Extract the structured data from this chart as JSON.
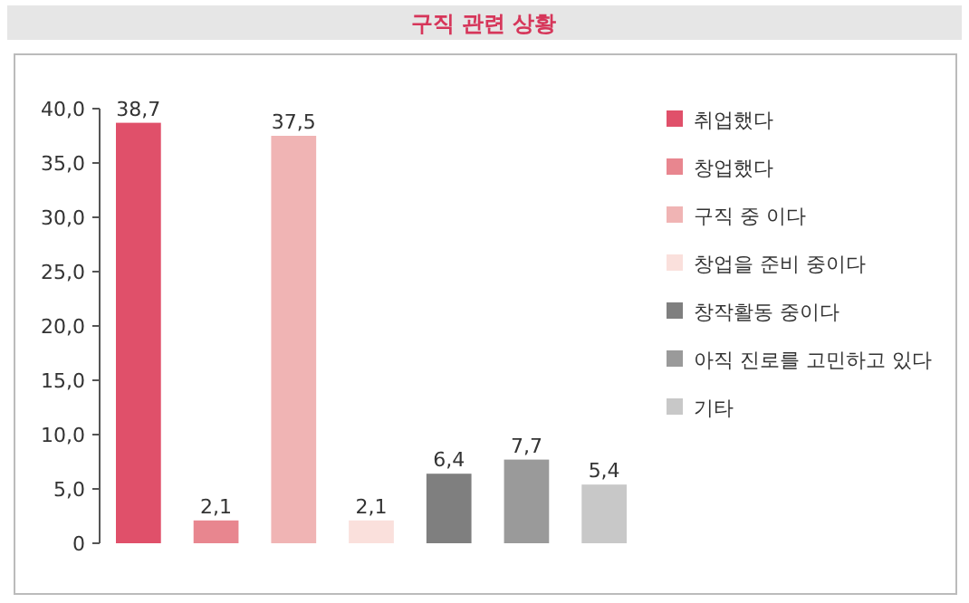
{
  "chart_data": {
    "type": "bar",
    "title": "구직 관련 상황",
    "categories": [
      null,
      null,
      null,
      null,
      null,
      null,
      null
    ],
    "stacked": true,
    "series": [
      {
        "name": "취업했다",
        "color": "#e0506a",
        "values": [
          38.7,
          null,
          null,
          null,
          null,
          null,
          null
        ],
        "value_labels": [
          "38,7",
          null,
          null,
          null,
          null,
          null,
          null
        ]
      },
      {
        "name": "창업했다",
        "color": "#e8868f",
        "values": [
          null,
          2.1,
          null,
          null,
          null,
          null,
          null
        ],
        "value_labels": [
          null,
          "2,1",
          null,
          null,
          null,
          null,
          null
        ]
      },
      {
        "name": "구직 중 이다",
        "color": "#f0b4b4",
        "values": [
          null,
          null,
          37.5,
          null,
          null,
          null,
          null
        ],
        "value_labels": [
          null,
          null,
          "37,5",
          null,
          null,
          null,
          null
        ]
      },
      {
        "name": "창업을 준비 중이다",
        "color": "#fae0dc",
        "values": [
          null,
          null,
          null,
          2.1,
          null,
          null,
          null
        ],
        "value_labels": [
          null,
          null,
          null,
          "2,1",
          null,
          null,
          null
        ]
      },
      {
        "name": "창작활동 중이다",
        "color": "#7f7f7f",
        "values": [
          null,
          null,
          null,
          null,
          6.4,
          null,
          null
        ],
        "value_labels": [
          null,
          null,
          null,
          null,
          "6,4",
          null,
          null
        ]
      },
      {
        "name": "아직 진로를 고민하고 있다",
        "color": "#9a9a9a",
        "values": [
          null,
          null,
          null,
          null,
          null,
          7.7,
          null
        ],
        "value_labels": [
          null,
          null,
          null,
          null,
          null,
          "7,7",
          null
        ]
      },
      {
        "name": "기타",
        "color": "#c8c8c8",
        "values": [
          null,
          null,
          null,
          null,
          null,
          null,
          5.4
        ],
        "value_labels": [
          null,
          null,
          null,
          null,
          null,
          null,
          "5,4"
        ]
      }
    ],
    "ylim": [
      0,
      40
    ],
    "yticks": [
      {
        "value": 0,
        "label": "0"
      },
      {
        "value": 5,
        "label": "5,0"
      },
      {
        "value": 10,
        "label": "10,0"
      },
      {
        "value": 15,
        "label": "15,0"
      },
      {
        "value": 20,
        "label": "20,0"
      },
      {
        "value": 25,
        "label": "25,0"
      },
      {
        "value": 30,
        "label": "30,0"
      },
      {
        "value": 35,
        "label": "35,0"
      },
      {
        "value": 40,
        "label": "40,0"
      }
    ],
    "grid": false,
    "legend": "right"
  }
}
